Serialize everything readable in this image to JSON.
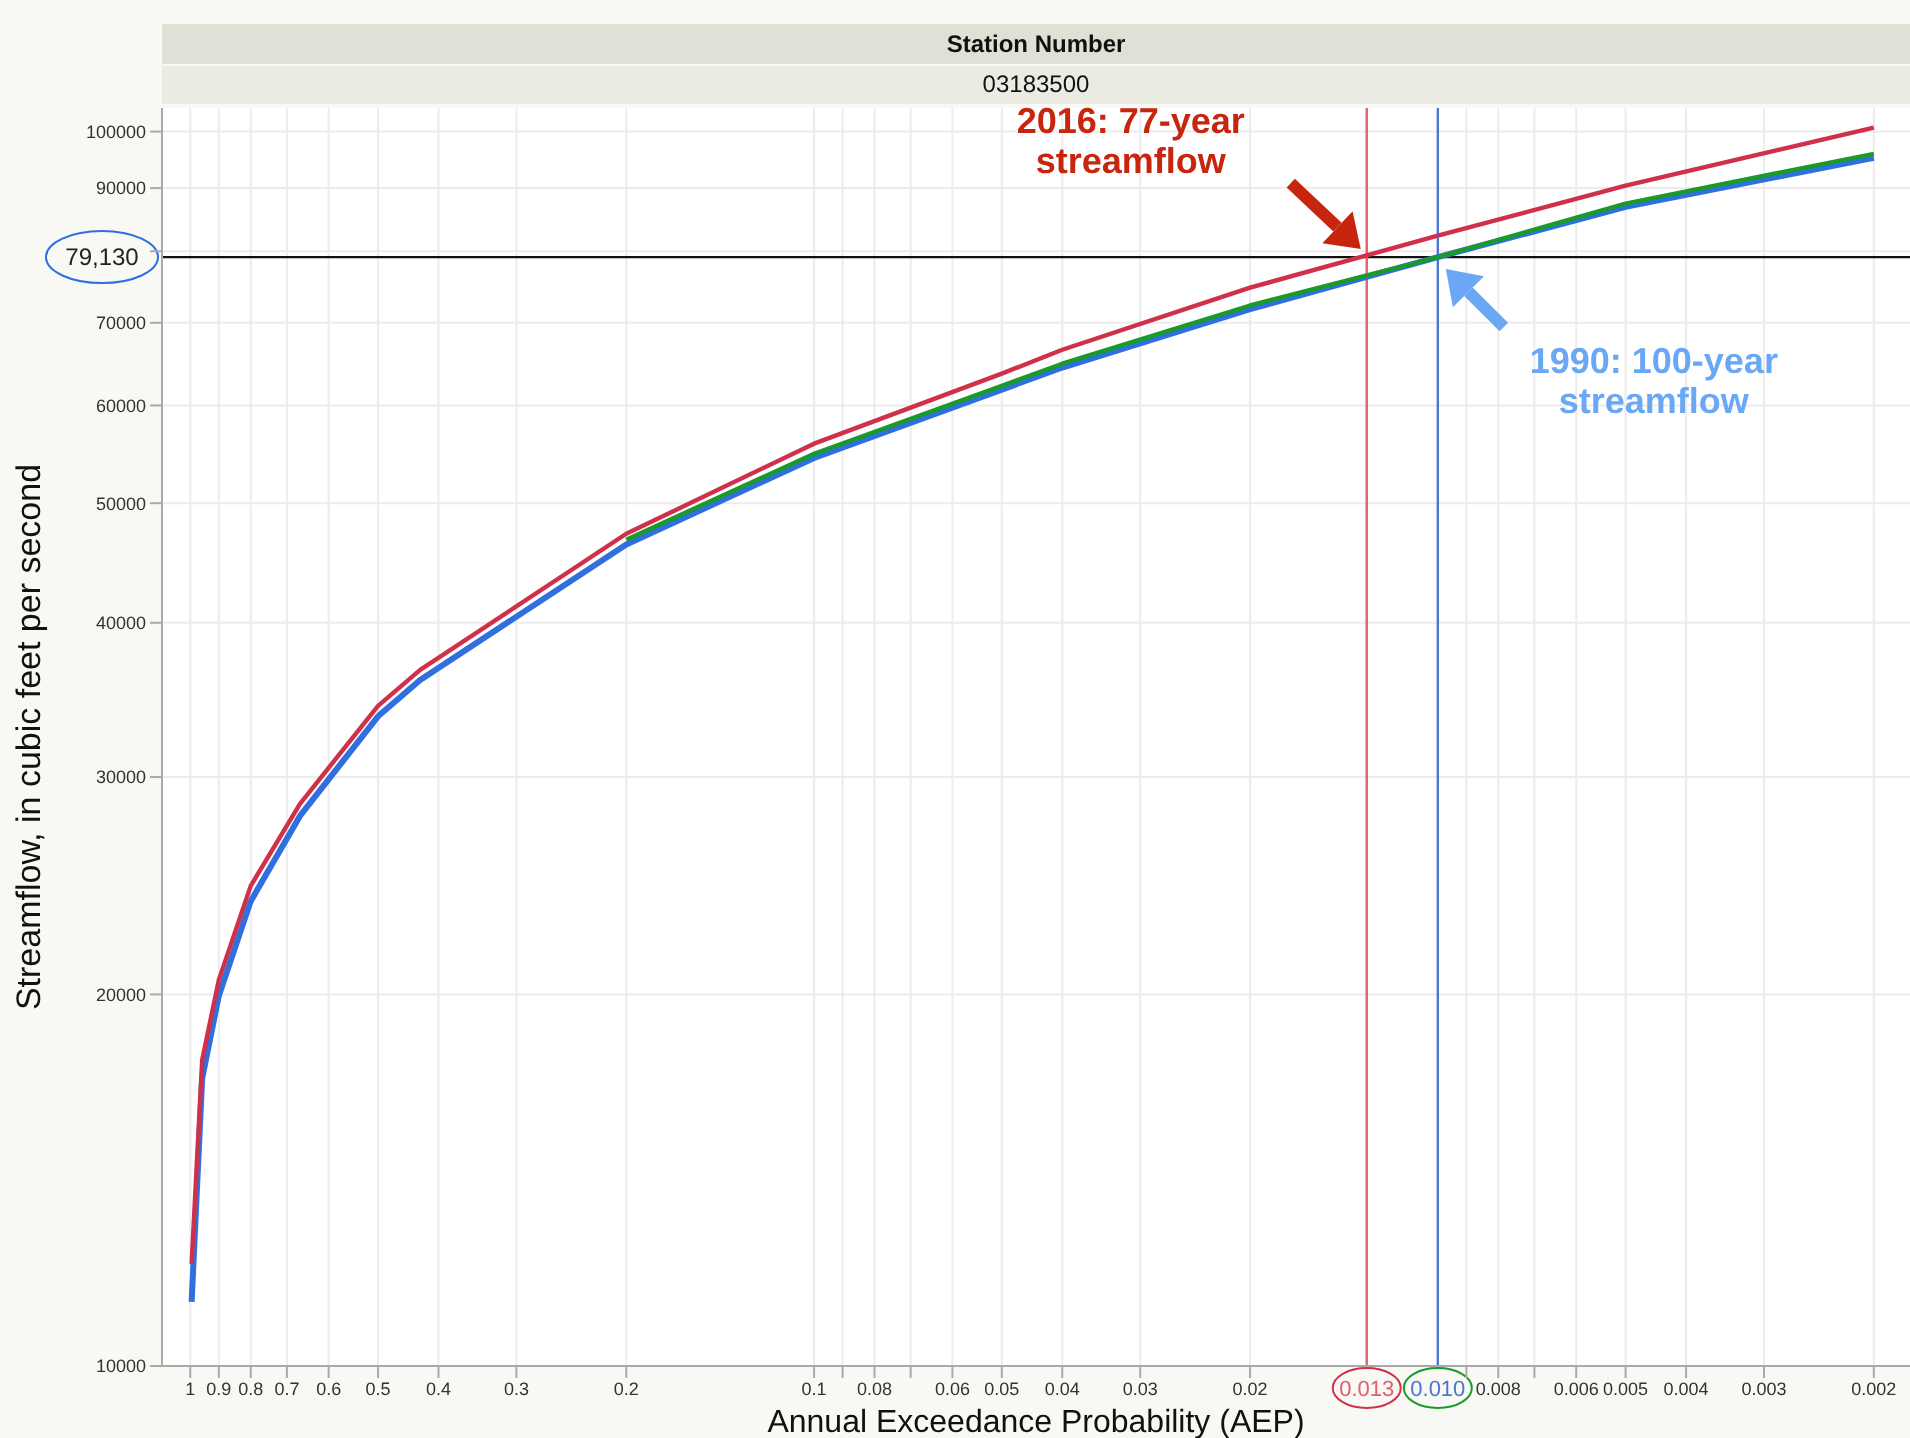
{
  "chart_data": {
    "type": "line",
    "title": "Station Number",
    "subtitle": "03183500",
    "xlabel": "Annual Exceedance Probability (AEP)",
    "ylabel": "Streamflow, in cubic feet per second",
    "log": "xy",
    "grid": true,
    "x": [
      0.995,
      0.957,
      0.9,
      0.8,
      0.667,
      0.5,
      0.428,
      0.2,
      0.1,
      0.05,
      0.04,
      0.02,
      0.01,
      0.005,
      0.002
    ],
    "series": [
      {
        "color": "#2f6fde",
        "values": [
          11270,
          17100,
          19950,
          23800,
          27900,
          33600,
          35950,
          46300,
          54400,
          61800,
          64400,
          71800,
          79130,
          86900,
          95250
        ]
      },
      {
        "color": "#1a9a2a",
        "values": [
          null,
          null,
          null,
          null,
          null,
          null,
          null,
          46710,
          54830,
          62230,
          64860,
          72300,
          79130,
          87440,
          95940
        ]
      },
      {
        "color": "#d0304a",
        "values": [
          12100,
          17700,
          20550,
          24490,
          28540,
          34260,
          36640,
          47230,
          55870,
          63670,
          66570,
          74740,
          82360,
          90400,
          100740
        ]
      }
    ],
    "xlim": [
      1.11,
      0.00175
    ],
    "ylim": [
      10000,
      104500
    ],
    "xticks": [
      1,
      0.9,
      0.8,
      0.7,
      0.6,
      0.5,
      0.4,
      0.3,
      0.2,
      0.1,
      {
        "value": 0.09,
        "label": null
      },
      0.08,
      {
        "value": 0.07,
        "label": null
      },
      0.06,
      0.05,
      0.04,
      0.03,
      0.02,
      {
        "value": 0.009,
        "label": null
      },
      0.008,
      {
        "value": 0.007,
        "label": null
      },
      0.006,
      0.005,
      0.004,
      0.003,
      0.002
    ],
    "yticks": [
      10000,
      20000,
      30000,
      40000,
      50000,
      60000,
      70000,
      {
        "value": 80000,
        "label": null
      },
      90000,
      100000
    ],
    "ref_lines": [
      {
        "axis": "y",
        "value": 79130,
        "label": "79,130",
        "color": "#111111"
      },
      {
        "axis": "x",
        "value": 0.013,
        "label": "0.013",
        "color": "#e0606e"
      },
      {
        "axis": "x",
        "value": 0.01,
        "label": "0.010",
        "color": "#4a78d0"
      }
    ],
    "annotations": [
      "2016: 77-year streamflow",
      "1990: 100-year streamflow"
    ]
  }
}
